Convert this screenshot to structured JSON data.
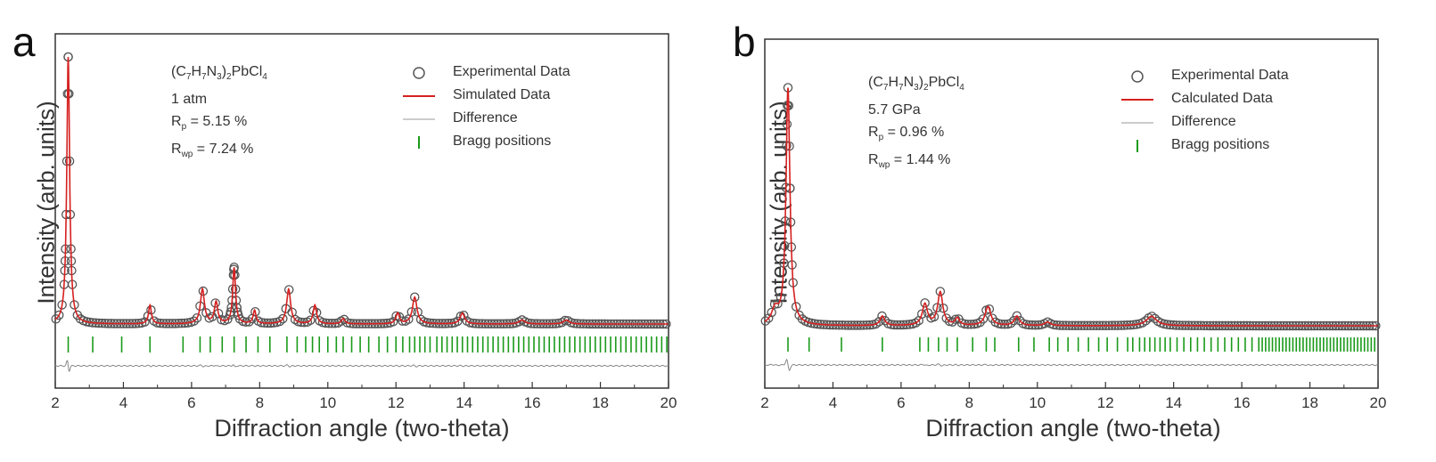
{
  "chart_data": [
    {
      "panel": "a",
      "type": "line",
      "compound": {
        "prefix": "(C",
        "s1": "7",
        "h": "H",
        "s2": "7",
        "n": "N",
        "s3": "3",
        "close": ")",
        "s4": "2",
        "tail": "PbCl",
        "s5": "4"
      },
      "condition": "1 atm",
      "rp_label": "R",
      "rp_sub": "p",
      "rp_value": " = 5.15 %",
      "rwp_label": "R",
      "rwp_sub": "wp",
      "rwp_value": " = 7.24 %",
      "xlabel": "Diffraction angle (two-theta)",
      "ylabel": "Intensity (arb. units)",
      "xlim": [
        2,
        20
      ],
      "xticks": [
        "2",
        "4",
        "6",
        "8",
        "10",
        "12",
        "14",
        "16",
        "18",
        "20"
      ],
      "legend": [
        "Experimental Data",
        "Simulated Data",
        "Difference",
        "Bragg positions"
      ],
      "colors": {
        "experimental": "#555555",
        "simulated": "#d62020",
        "difference": "#888888",
        "bragg": "#1a9a1a"
      },
      "peaks": [
        {
          "x": 2.38,
          "h": 1.0,
          "w": 0.05
        },
        {
          "x": 4.78,
          "h": 0.07,
          "w": 0.05
        },
        {
          "x": 6.32,
          "h": 0.13,
          "w": 0.07
        },
        {
          "x": 6.72,
          "h": 0.08,
          "w": 0.06
        },
        {
          "x": 7.25,
          "h": 0.21,
          "w": 0.05
        },
        {
          "x": 7.85,
          "h": 0.05,
          "w": 0.05
        },
        {
          "x": 8.85,
          "h": 0.13,
          "w": 0.07
        },
        {
          "x": 9.62,
          "h": 0.07,
          "w": 0.06
        },
        {
          "x": 10.45,
          "h": 0.02,
          "w": 0.06
        },
        {
          "x": 12.05,
          "h": 0.04,
          "w": 0.06
        },
        {
          "x": 12.55,
          "h": 0.1,
          "w": 0.08
        },
        {
          "x": 13.95,
          "h": 0.04,
          "w": 0.08
        },
        {
          "x": 15.7,
          "h": 0.015,
          "w": 0.1
        },
        {
          "x": 17.0,
          "h": 0.015,
          "w": 0.1
        }
      ],
      "bragg_positions": [
        2.38,
        3.1,
        3.95,
        4.78,
        5.75,
        6.25,
        6.55,
        6.9,
        7.25,
        7.6,
        7.95,
        8.3,
        8.8,
        9.1,
        9.35,
        9.55,
        9.75,
        10.0,
        10.25,
        10.45,
        10.7,
        10.95,
        11.2,
        11.5,
        11.75,
        12.0,
        12.2,
        12.4,
        12.55,
        12.7,
        12.85,
        13.0,
        13.2,
        13.35,
        13.5,
        13.65,
        13.8,
        13.95,
        14.1,
        14.25,
        14.4,
        14.55,
        14.7,
        14.85,
        15.0,
        15.15,
        15.3,
        15.45,
        15.6,
        15.75,
        15.9,
        16.05,
        16.2,
        16.35,
        16.5,
        16.65,
        16.8,
        16.95,
        17.1,
        17.25,
        17.4,
        17.55,
        17.7,
        17.85,
        18.0,
        18.15,
        18.3,
        18.45,
        18.6,
        18.75,
        18.9,
        19.05,
        19.2,
        19.35,
        19.5,
        19.65,
        19.8,
        19.95
      ]
    },
    {
      "panel": "b",
      "type": "line",
      "compound": {
        "prefix": "(C",
        "s1": "7",
        "h": "H",
        "s2": "7",
        "n": "N",
        "s3": "3",
        "close": ")",
        "s4": "2",
        "tail": "PbCl",
        "s5": "4"
      },
      "condition": "5.7 GPa",
      "rp_label": "R",
      "rp_sub": "p",
      "rp_value": " = 0.96 %",
      "rwp_label": "R",
      "rwp_sub": "wp",
      "rwp_value": " = 1.44 %",
      "xlabel": "Diffraction angle (two-theta)",
      "ylabel": "Intensity (arb. units)",
      "xlim": [
        2,
        20
      ],
      "xticks": [
        "2",
        "4",
        "6",
        "8",
        "10",
        "12",
        "14",
        "16",
        "18",
        "20"
      ],
      "legend": [
        "Experimental Data",
        "Calculated Data",
        "Difference",
        "Bragg positions"
      ],
      "colors": {
        "experimental": "#555555",
        "simulated": "#d62020",
        "difference": "#888888",
        "bragg": "#1a9a1a"
      },
      "peaks": [
        {
          "x": 2.68,
          "h": 1.0,
          "w": 0.07
        },
        {
          "x": 2.3,
          "h": 0.06,
          "w": 0.12
        },
        {
          "x": 5.45,
          "h": 0.04,
          "w": 0.08
        },
        {
          "x": 6.7,
          "h": 0.09,
          "w": 0.09
        },
        {
          "x": 7.15,
          "h": 0.14,
          "w": 0.09
        },
        {
          "x": 7.65,
          "h": 0.03,
          "w": 0.07
        },
        {
          "x": 8.55,
          "h": 0.08,
          "w": 0.1
        },
        {
          "x": 9.4,
          "h": 0.04,
          "w": 0.09
        },
        {
          "x": 10.3,
          "h": 0.015,
          "w": 0.1
        },
        {
          "x": 13.35,
          "h": 0.04,
          "w": 0.18
        }
      ],
      "bragg_positions": [
        2.68,
        3.3,
        4.25,
        5.45,
        6.55,
        6.8,
        7.1,
        7.35,
        7.65,
        8.1,
        8.5,
        8.75,
        9.45,
        9.9,
        10.35,
        10.6,
        10.9,
        11.2,
        11.5,
        11.8,
        12.05,
        12.35,
        12.65,
        12.8,
        13.0,
        13.15,
        13.3,
        13.45,
        13.6,
        13.75,
        13.9,
        14.1,
        14.3,
        14.5,
        14.7,
        14.9,
        15.1,
        15.3,
        15.5,
        15.7,
        15.9,
        16.1,
        16.3,
        16.5,
        16.6,
        16.7,
        16.8,
        16.9,
        17.0,
        17.1,
        17.2,
        17.3,
        17.4,
        17.5,
        17.6,
        17.7,
        17.8,
        17.9,
        18.0,
        18.1,
        18.2,
        18.3,
        18.4,
        18.5,
        18.6,
        18.7,
        18.8,
        18.9,
        19.0,
        19.1,
        19.2,
        19.3,
        19.4,
        19.5,
        19.6,
        19.7,
        19.8,
        19.9
      ]
    }
  ]
}
